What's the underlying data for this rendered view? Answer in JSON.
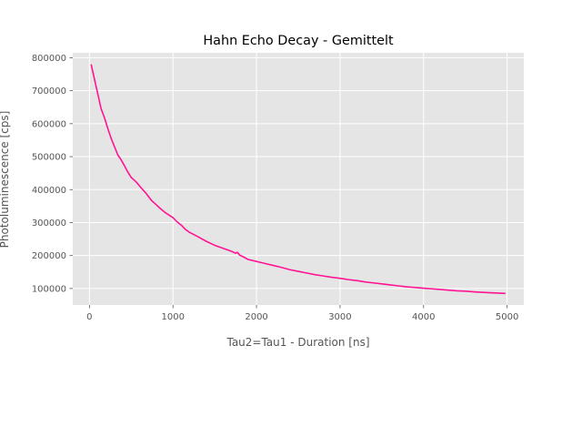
{
  "chart_data": {
    "type": "line",
    "title": "Hahn Echo Decay - Gemittelt",
    "xlabel": "Tau2=Tau1 -  Duration [ns]",
    "ylabel": "Photoluminescence [cps]",
    "xlim": [
      -200,
      5200
    ],
    "ylim": [
      50000,
      815000
    ],
    "xticks": [
      0,
      1000,
      2000,
      3000,
      4000,
      5000
    ],
    "xtick_labels": [
      "0",
      "1000",
      "2000",
      "3000",
      "4000",
      "5000"
    ],
    "yticks": [
      100000,
      200000,
      300000,
      400000,
      500000,
      600000,
      700000,
      800000
    ],
    "ytick_labels": [
      "100000",
      "200000",
      "300000",
      "400000",
      "500000",
      "600000",
      "700000",
      "800000"
    ],
    "grid": true,
    "style": "ggplot",
    "series": [
      {
        "color": "#ff1493",
        "x": [
          20,
          60,
          100,
          140,
          180,
          220,
          260,
          300,
          340,
          380,
          420,
          460,
          500,
          560,
          620,
          680,
          740,
          800,
          860,
          920,
          1000,
          1050,
          1100,
          1150,
          1200,
          1300,
          1400,
          1500,
          1600,
          1700,
          1750,
          1770,
          1800,
          1850,
          1900,
          2000,
          2100,
          2200,
          2300,
          2400,
          2500,
          2600,
          2700,
          2800,
          2900,
          3000,
          3100,
          3200,
          3300,
          3400,
          3500,
          3600,
          3700,
          3800,
          3900,
          4000,
          4100,
          4200,
          4300,
          4400,
          4500,
          4600,
          4700,
          4800,
          4900,
          4980
        ],
        "y": [
          780000,
          735000,
          690000,
          645000,
          618000,
          585000,
          555000,
          530000,
          505000,
          490000,
          472000,
          453000,
          437000,
          423000,
          405000,
          388000,
          368000,
          354000,
          340000,
          328000,
          315000,
          302000,
          292000,
          279000,
          270000,
          257000,
          243000,
          231000,
          222000,
          213000,
          207000,
          210000,
          201000,
          195000,
          188000,
          182000,
          176000,
          170000,
          164000,
          157000,
          152000,
          147000,
          142000,
          138000,
          134000,
          131000,
          127000,
          124000,
          120000,
          117000,
          114000,
          111000,
          108000,
          105000,
          103000,
          101000,
          99000,
          97000,
          95000,
          93000,
          92000,
          90000,
          88500,
          87000,
          86000,
          85000
        ]
      }
    ]
  }
}
